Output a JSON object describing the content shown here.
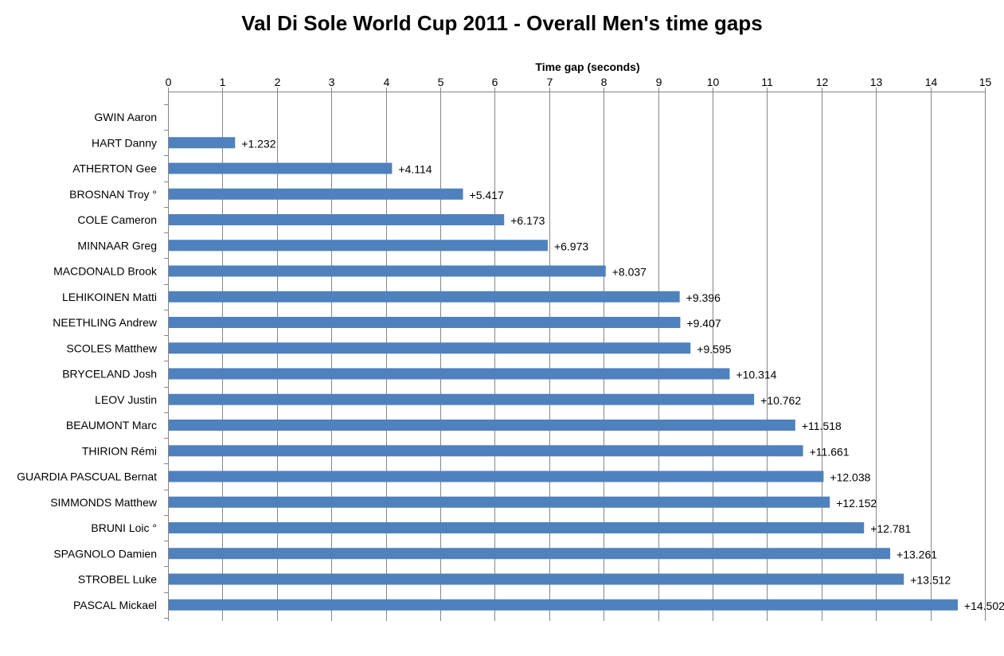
{
  "chart_data": {
    "type": "bar",
    "orientation": "horizontal",
    "title": "Val Di Sole World Cup 2011 - Overall Men's time gaps",
    "xlabel": "Time gap (seconds)",
    "ylabel": "",
    "xlim": [
      0,
      15
    ],
    "x_ticks": [
      0,
      1,
      2,
      3,
      4,
      5,
      6,
      7,
      8,
      9,
      10,
      11,
      12,
      13,
      14,
      15
    ],
    "x_axis_position": "top",
    "grid": "vertical",
    "bar_color": "#4f81bd",
    "categories": [
      "GWIN Aaron",
      "HART Danny",
      "ATHERTON Gee",
      "BROSNAN Troy °",
      "COLE Cameron",
      "MINNAAR Greg",
      "MACDONALD Brook",
      "LEHIKOINEN Matti",
      "NEETHLING Andrew",
      "SCOLES Matthew",
      "BRYCELAND Josh",
      "LEOV Justin",
      "BEAUMONT Marc",
      "THIRION Rémi",
      "GUARDIA PASCUAL Bernat",
      "SIMMONDS Matthew",
      "BRUNI Loic °",
      "SPAGNOLO Damien",
      "STROBEL Luke",
      "PASCAL Mickael"
    ],
    "values": [
      0,
      1.232,
      4.114,
      5.417,
      6.173,
      6.973,
      8.037,
      9.396,
      9.407,
      9.595,
      10.314,
      10.762,
      11.518,
      11.661,
      12.038,
      12.152,
      12.781,
      13.261,
      13.512,
      14.502
    ],
    "data_labels": [
      "",
      "+1.232",
      "+4.114",
      "+5.417",
      "+6.173",
      "+6.973",
      "+8.037",
      "+9.396",
      "+9.407",
      "+9.595",
      "+10.314",
      "+10.762",
      "+11.518",
      "+11.661",
      "+12.038",
      "+12.152",
      "+12.781",
      "+13.261",
      "+13.512",
      "+14.502"
    ]
  }
}
